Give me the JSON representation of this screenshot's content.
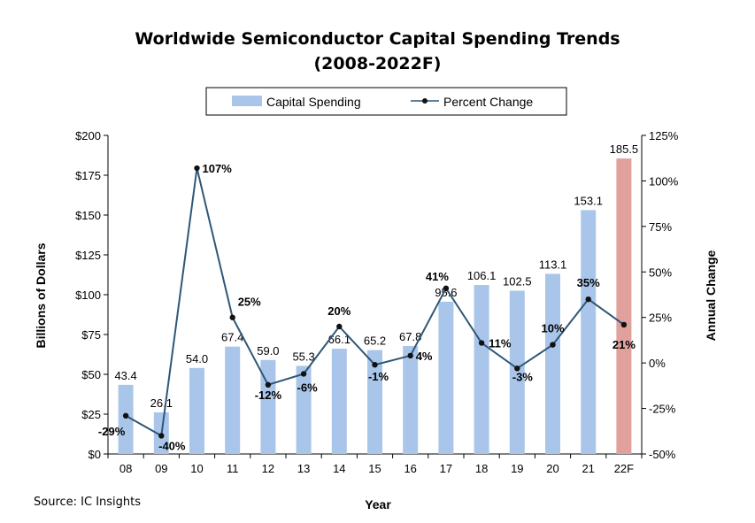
{
  "chart_data": {
    "type": "bar",
    "title": "Worldwide Semiconductor Capital Spending Trends",
    "subtitle": "(2008-2022F)",
    "xlabel": "Year",
    "ylabel": "Billions of Dollars",
    "y2label": "Annual Change",
    "categories": [
      "08",
      "09",
      "10",
      "11",
      "12",
      "13",
      "14",
      "15",
      "16",
      "17",
      "18",
      "19",
      "20",
      "21",
      "22F"
    ],
    "ylim": [
      0,
      200
    ],
    "y_ticks": [
      "$0",
      "$25",
      "$50",
      "$75",
      "$100",
      "$125",
      "$150",
      "$175",
      "$200"
    ],
    "y2lim": [
      -50,
      125
    ],
    "y2_ticks": [
      "-50%",
      "-25%",
      "0%",
      "25%",
      "50%",
      "75%",
      "100%",
      "125%"
    ],
    "legend_position": "top-center",
    "grid": false,
    "series": [
      {
        "name": "Capital Spending",
        "type": "bar",
        "axis": "left",
        "color": "#a9c6ea",
        "highlight_color": "#e0a19c",
        "highlight_index": 14,
        "values": [
          43.4,
          26.1,
          54.0,
          67.4,
          59.0,
          55.3,
          66.1,
          65.2,
          67.8,
          95.6,
          106.1,
          102.5,
          113.1,
          153.1,
          185.5
        ],
        "labels": [
          "43.4",
          "26.1",
          "54.0",
          "67.4",
          "59.0",
          "55.3",
          "66.1",
          "65.2",
          "67.8",
          "95.6",
          "106.1",
          "102.5",
          "113.1",
          "153.1",
          "185.5"
        ]
      },
      {
        "name": "Percent Change",
        "type": "line",
        "axis": "right",
        "color": "#2f5777",
        "values": [
          -29,
          -40,
          107,
          25,
          -12,
          -6,
          20,
          -1,
          4,
          41,
          11,
          -3,
          10,
          35,
          21
        ],
        "labels": [
          "-29%",
          "-40%",
          "107%",
          "25%",
          "-12%",
          "-6%",
          "20%",
          "-1%",
          "4%",
          "41%",
          "11%",
          "-3%",
          "10%",
          "35%",
          "21%"
        ]
      }
    ]
  },
  "source": "Source: IC Insights"
}
